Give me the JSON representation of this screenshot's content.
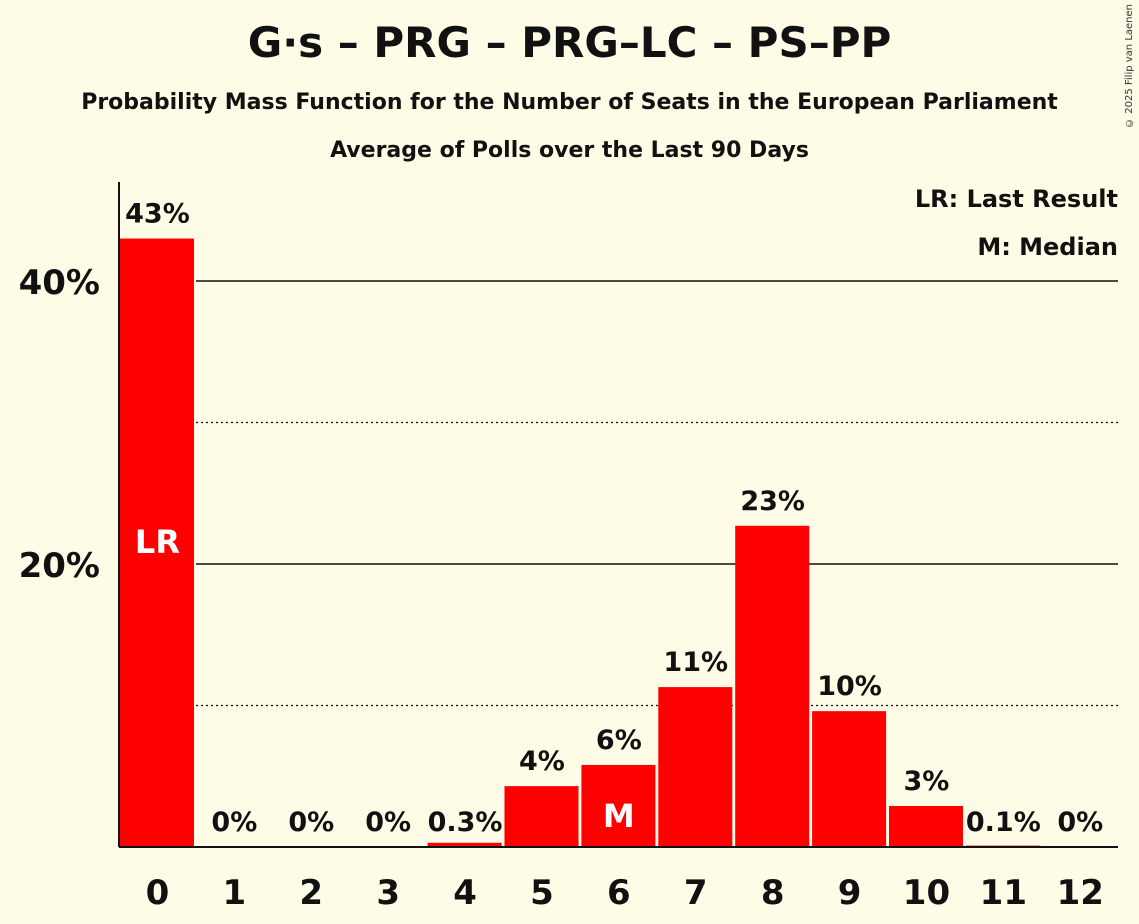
{
  "title": "G·s – PRG – PRG–LC – PS–PP",
  "subtitle": "Probability Mass Function for the Number of Seats in the European Parliament",
  "subtitle2": "Average of Polls over the Last 90 Days",
  "copyright": "© 2025 Filip van Laenen",
  "legend": {
    "last_result": "LR: Last Result",
    "median": "M: Median"
  },
  "colors": {
    "bar": "#ff0000",
    "background": "#fefbe6",
    "text": "#111111"
  },
  "chart_data": {
    "type": "bar",
    "categories": [
      "0",
      "1",
      "2",
      "3",
      "4",
      "5",
      "6",
      "7",
      "8",
      "9",
      "10",
      "11",
      "12"
    ],
    "values": [
      43,
      0,
      0,
      0,
      0.3,
      4.3,
      5.8,
      11.3,
      22.7,
      9.6,
      2.9,
      0.1,
      0
    ],
    "labels": [
      "43%",
      "0%",
      "0%",
      "0%",
      "0.3%",
      "4%",
      "6%",
      "11%",
      "23%",
      "10%",
      "3%",
      "0.1%",
      "0%"
    ],
    "ylim": [
      0,
      47
    ],
    "y_ticks": [
      {
        "value": 20,
        "label": "20%"
      },
      {
        "value": 40,
        "label": "40%"
      }
    ],
    "minor_gridlines": [
      10,
      30
    ],
    "last_result_index": 0,
    "last_result_label": "LR",
    "median_index": 6,
    "median_label": "M"
  }
}
